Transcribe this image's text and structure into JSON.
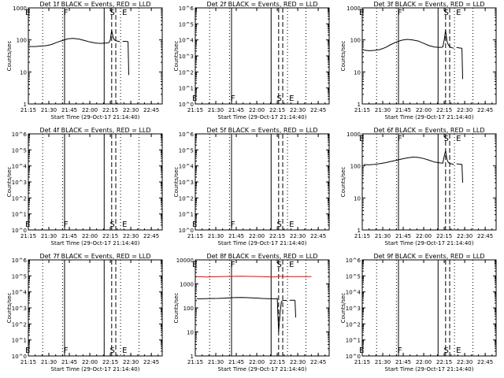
{
  "x_axis": {
    "tick_labels": [
      "21:15",
      "21:30",
      "21:45",
      "22:00",
      "22:15",
      "22:30",
      "22:45"
    ],
    "ticks_min": [
      15,
      30,
      45,
      60,
      75,
      90,
      105
    ],
    "xlim_min": [
      15,
      113
    ],
    "xlabel": "Start Time (29-Oct-17 21:14:40)"
  },
  "common": {
    "ylabel": "Counts/sec",
    "dotted_lines_min": [
      25.5,
      40,
      82.5,
      96
    ],
    "solid_lines_min": [
      41.5,
      70.5
    ],
    "dashed_lines_min": [
      76,
      79
    ],
    "flag_labels": [
      {
        "text": "E",
        "x": 14.5
      },
      {
        "text": "F",
        "x": 42.5
      },
      {
        "text": "S",
        "x": 76.5
      },
      {
        "text": "E",
        "x": 85.5
      }
    ],
    "colors": {
      "events": "#000000",
      "lld": "#ff0000"
    }
  },
  "chart_data": [
    {
      "id": "det1",
      "title": "Det 1f BLACK = Events, RED = LLD",
      "type": "line",
      "log_scale": true,
      "ylim": [
        1,
        1000
      ],
      "ytick_labels": [
        "1",
        "10",
        "100",
        "1000"
      ],
      "flags_position": "top",
      "series": [
        {
          "color": "#000000",
          "points": [
            [
              16,
              62
            ],
            [
              20,
              62
            ],
            [
              24,
              64
            ],
            [
              28,
              66
            ],
            [
              32,
              72
            ],
            [
              36,
              84
            ],
            [
              40,
              96
            ],
            [
              44,
              108
            ],
            [
              48,
              112
            ],
            [
              52,
              106
            ],
            [
              56,
              96
            ],
            [
              60,
              86
            ],
            [
              64,
              80
            ],
            [
              68,
              78
            ],
            [
              72,
              80
            ],
            [
              74,
              82
            ],
            [
              75,
              100
            ],
            [
              76,
              200
            ],
            [
              77,
              120
            ],
            [
              78,
              100
            ],
            [
              79,
              95
            ],
            [
              80,
              92
            ],
            [
              82,
              88
            ]
          ]
        },
        {
          "color": "#000000",
          "points": [
            [
              84,
              90
            ],
            [
              86,
              90
            ],
            [
              88,
              88
            ]
          ]
        },
        {
          "color": "#000000",
          "points": [
            [
              88,
              88
            ],
            [
              88.5,
              8
            ]
          ]
        }
      ]
    },
    {
      "id": "det2",
      "title": "Det 2f BLACK = Events, RED = LLD",
      "type": "line",
      "log_scale": true,
      "ylim": [
        1,
        1000000
      ],
      "ytick_labels": [
        "10^0",
        "10^1",
        "10^2",
        "10^3",
        "10^4",
        "10^5",
        "10^6"
      ],
      "flags_position": "bottom",
      "series": []
    },
    {
      "id": "det3",
      "title": "Det 3f BLACK = Events, RED = LLD",
      "type": "line",
      "log_scale": true,
      "ylim": [
        1,
        1000
      ],
      "ytick_labels": [
        "1",
        "10",
        "100",
        "1000"
      ],
      "flags_position": "top",
      "series": [
        {
          "color": "#000000",
          "points": [
            [
              16,
              48
            ],
            [
              20,
              46
            ],
            [
              24,
              47
            ],
            [
              28,
              50
            ],
            [
              32,
              58
            ],
            [
              36,
              72
            ],
            [
              40,
              86
            ],
            [
              44,
              98
            ],
            [
              48,
              104
            ],
            [
              52,
              100
            ],
            [
              56,
              92
            ],
            [
              60,
              78
            ],
            [
              64,
              66
            ],
            [
              68,
              60
            ],
            [
              72,
              58
            ],
            [
              74,
              60
            ],
            [
              75,
              100
            ],
            [
              76,
              200
            ],
            [
              77,
              90
            ],
            [
              78,
              70
            ],
            [
              79,
              62
            ],
            [
              80,
              58
            ],
            [
              82,
              55
            ]
          ]
        },
        {
          "color": "#000000",
          "points": [
            [
              84,
              58
            ],
            [
              86,
              56
            ],
            [
              88,
              55
            ]
          ]
        },
        {
          "color": "#000000",
          "points": [
            [
              88,
              55
            ],
            [
              88.5,
              6
            ]
          ]
        }
      ]
    },
    {
      "id": "det4",
      "title": "Det 4f BLACK = Events, RED = LLD",
      "type": "line",
      "log_scale": true,
      "ylim": [
        1,
        1000000
      ],
      "ytick_labels": [
        "10^0",
        "10^1",
        "10^2",
        "10^3",
        "10^4",
        "10^5",
        "10^6"
      ],
      "flags_position": "bottom",
      "series": []
    },
    {
      "id": "det5",
      "title": "Det 5f BLACK = Events, RED = LLD",
      "type": "line",
      "log_scale": true,
      "ylim": [
        1,
        1000000
      ],
      "ytick_labels": [
        "10^0",
        "10^1",
        "10^2",
        "10^3",
        "10^4",
        "10^5",
        "10^6"
      ],
      "flags_position": "bottom",
      "series": []
    },
    {
      "id": "det6",
      "title": "Det 6f BLACK = Events, RED = LLD",
      "type": "line",
      "log_scale": true,
      "ylim": [
        1,
        1000
      ],
      "ytick_labels": [
        "1",
        "10",
        "100",
        "1000"
      ],
      "flags_position": "top",
      "series": [
        {
          "color": "#000000",
          "points": [
            [
              16,
              110
            ],
            [
              20,
              108
            ],
            [
              24,
              112
            ],
            [
              28,
              118
            ],
            [
              32,
              126
            ],
            [
              36,
              138
            ],
            [
              40,
              150
            ],
            [
              44,
              164
            ],
            [
              48,
              178
            ],
            [
              52,
              188
            ],
            [
              56,
              184
            ],
            [
              60,
              170
            ],
            [
              64,
              150
            ],
            [
              68,
              132
            ],
            [
              72,
              124
            ],
            [
              74,
              122
            ],
            [
              75,
              200
            ],
            [
              76,
              300
            ],
            [
              77,
              160
            ],
            [
              78,
              128
            ],
            [
              79,
              120
            ],
            [
              80,
              116
            ],
            [
              82,
              112
            ]
          ]
        },
        {
          "color": "#000000",
          "points": [
            [
              84,
              116
            ],
            [
              86,
              114
            ],
            [
              88,
              112
            ]
          ]
        },
        {
          "color": "#000000",
          "points": [
            [
              88,
              112
            ],
            [
              88.5,
              30
            ]
          ]
        }
      ]
    },
    {
      "id": "det7",
      "title": "Det 7f BLACK = Events, RED = LLD",
      "type": "line",
      "log_scale": true,
      "ylim": [
        1,
        1000000
      ],
      "ytick_labels": [
        "10^0",
        "10^1",
        "10^2",
        "10^3",
        "10^4",
        "10^5",
        "10^6"
      ],
      "flags_position": "bottom",
      "series": []
    },
    {
      "id": "det8",
      "title": "Det 8f BLACK = Events, RED = LLD",
      "type": "line",
      "log_scale": true,
      "ylim": [
        1,
        10000
      ],
      "ytick_labels": [
        "1",
        "10",
        "100",
        "1000",
        "10000"
      ],
      "flags_position": "top",
      "series": [
        {
          "color": "#ff0000",
          "points": [
            [
              16,
              2000
            ],
            [
              24,
              1950
            ],
            [
              32,
              2000
            ],
            [
              40,
              2050
            ],
            [
              48,
              2100
            ],
            [
              56,
              2050
            ],
            [
              64,
              2000
            ],
            [
              72,
              1950
            ],
            [
              75,
              2000
            ],
            [
              76,
              2100
            ],
            [
              80,
              2000
            ],
            [
              88,
              2000
            ],
            [
              96,
              2000
            ],
            [
              100,
              2000
            ]
          ]
        },
        {
          "color": "#000000",
          "points": [
            [
              16,
              240
            ],
            [
              20,
              240
            ],
            [
              24,
              245
            ],
            [
              28,
              248
            ],
            [
              32,
              250
            ],
            [
              36,
              255
            ],
            [
              40,
              262
            ],
            [
              44,
              268
            ],
            [
              48,
              272
            ],
            [
              52,
              268
            ],
            [
              56,
              262
            ],
            [
              60,
              256
            ],
            [
              64,
              248
            ],
            [
              68,
              244
            ],
            [
              72,
              240
            ],
            [
              74,
              238
            ],
            [
              75,
              250
            ],
            [
              76,
              10
            ],
            [
              77,
              60
            ],
            [
              78,
              180
            ],
            [
              79,
              200
            ],
            [
              80,
              205
            ],
            [
              82,
              205
            ]
          ]
        },
        {
          "color": "#000000",
          "points": [
            [
              84,
              210
            ],
            [
              86,
              210
            ],
            [
              88,
              208
            ]
          ]
        },
        {
          "color": "#000000",
          "points": [
            [
              88,
              208
            ],
            [
              88.5,
              40
            ]
          ]
        }
      ]
    },
    {
      "id": "det9",
      "title": "Det 9f BLACK = Events, RED = LLD",
      "type": "line",
      "log_scale": true,
      "ylim": [
        1,
        1000000
      ],
      "ytick_labels": [
        "10^0",
        "10^1",
        "10^2",
        "10^3",
        "10^4",
        "10^5",
        "10^6"
      ],
      "flags_position": "bottom",
      "series": []
    }
  ]
}
